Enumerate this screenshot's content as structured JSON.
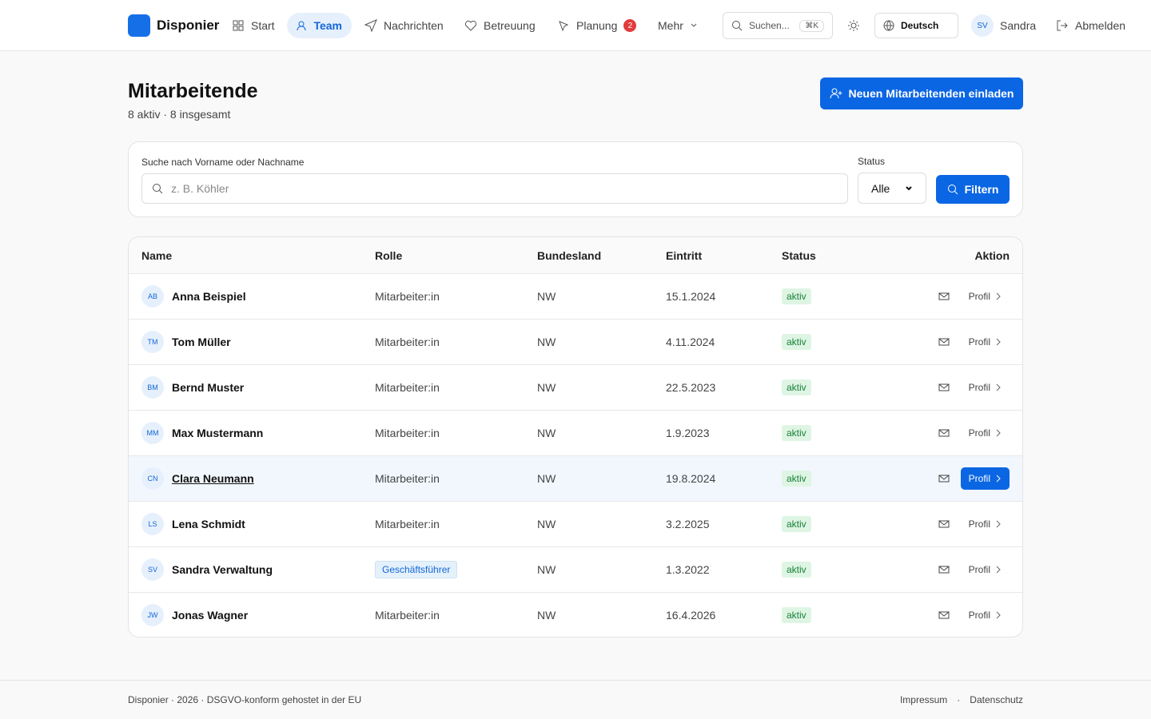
{
  "nav": {
    "brand": "Disponier",
    "items": [
      "Start",
      "Team",
      "Nachrichten",
      "Betreuung",
      "Planung",
      "Mehr"
    ],
    "planung_badge": 2,
    "search": "Suchen...",
    "shortcut": "⌘K",
    "language": "Deutsch",
    "user_initials": "SV",
    "user": "Sandra",
    "logout": "Abmelden"
  },
  "header": {
    "title": "Mitarbeitende",
    "subtitle": "8 aktiv · 8 insgesamt",
    "invite_button": "Neuen Mitarbeitenden einladen"
  },
  "filter": {
    "search_label": "Suche nach Vorname oder Nachname",
    "search_placeholder": "z. B. Köhler",
    "status_label": "Status",
    "status_option": "Alle",
    "button": "Filtern"
  },
  "table": {
    "columns": [
      "Name",
      "Rolle",
      "Bundesland",
      "Eintritt",
      "Status",
      "Aktion"
    ],
    "action": "Profil",
    "rows": [
      {
        "initials": "AB",
        "name": "Anna Beispiel",
        "role": "Mitarbeiter:in",
        "state": "NW",
        "joined": "15.1.2024",
        "status": "aktiv"
      },
      {
        "initials": "TM",
        "name": "Tom Müller",
        "role": "Mitarbeiter:in",
        "state": "NW",
        "joined": "4.11.2024",
        "status": "aktiv"
      },
      {
        "initials": "BM",
        "name": "Bernd Muster",
        "role": "Mitarbeiter:in",
        "state": "NW",
        "joined": "22.5.2023",
        "status": "aktiv"
      },
      {
        "initials": "MM",
        "name": "Max Mustermann",
        "role": "Mitarbeiter:in",
        "state": "NW",
        "joined": "1.9.2023",
        "status": "aktiv"
      },
      {
        "initials": "CN",
        "name": "Clara Neumann",
        "role": "Mitarbeiter:in",
        "state": "NW",
        "joined": "19.8.2024",
        "status": "aktiv"
      },
      {
        "initials": "LS",
        "name": "Lena Schmidt",
        "role": "Mitarbeiter:in",
        "state": "NW",
        "joined": "3.2.2025",
        "status": "aktiv"
      },
      {
        "initials": "SV",
        "name": "Sandra Verwaltung",
        "role": "Geschäftsführer",
        "state": "NW",
        "joined": "1.3.2022",
        "status": "aktiv"
      },
      {
        "initials": "JW",
        "name": "Jonas Wagner",
        "role": "Mitarbeiter:in",
        "state": "NW",
        "joined": "16.4.2026",
        "status": "aktiv"
      }
    ]
  },
  "footer": {
    "text": "Disponier · 2026 · DSGVO-konform gehostet in der EU",
    "links": [
      "Impressum",
      "Datenschutz"
    ],
    "separator": "·"
  }
}
